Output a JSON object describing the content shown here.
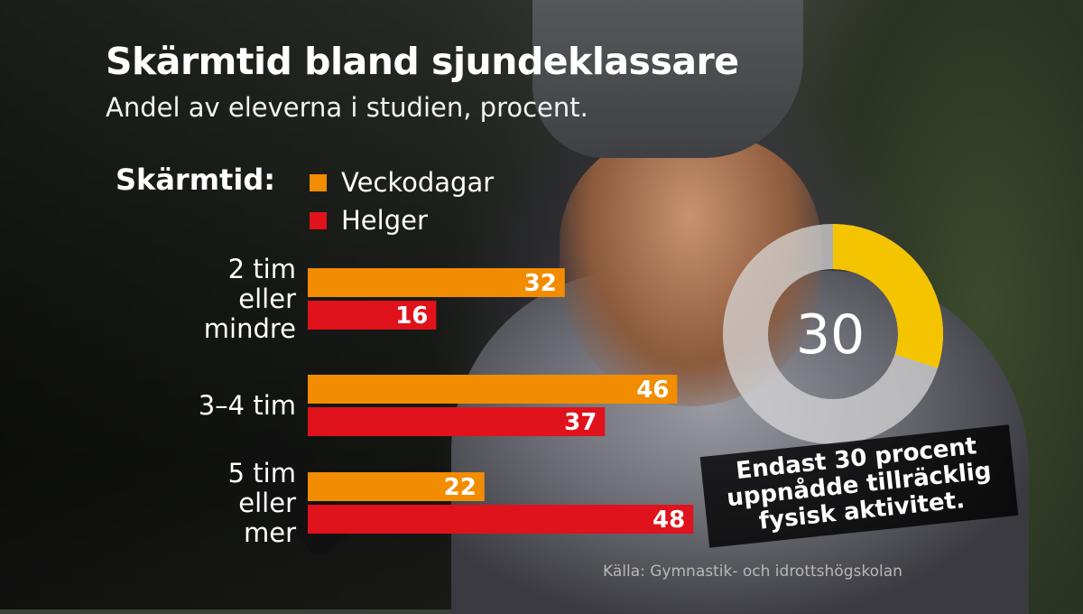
{
  "title": "Skärmtid bland sjundeklassare",
  "subtitle": "Andel av eleverna i studien, procent.",
  "legend": {
    "heading": "Skärmtid:",
    "items": [
      {
        "label": "Veckodagar",
        "color": "#f28c00"
      },
      {
        "label": "Helger",
        "color": "#e0121b"
      }
    ]
  },
  "chart_data": {
    "type": "bar",
    "orientation": "horizontal",
    "categories": [
      [
        "2 tim",
        "eller",
        "mindre"
      ],
      [
        "3–4 tim"
      ],
      [
        "5 tim",
        "eller",
        "mer"
      ]
    ],
    "series": [
      {
        "name": "Veckodagar",
        "color": "#f28c00",
        "values": [
          32,
          46,
          22
        ]
      },
      {
        "name": "Helger",
        "color": "#e0121b",
        "values": [
          16,
          37,
          48
        ]
      }
    ],
    "value_labels": true,
    "xlim": [
      0,
      50
    ],
    "grid": false,
    "legend_position": "top-left"
  },
  "donut": {
    "value": 30,
    "label": "30",
    "color_fill": "#f5c400",
    "color_rest": "rgba(215,215,215,0.75)"
  },
  "callout": "Endast 30 procent uppnådde tillräcklig fysisk aktivitet.",
  "source": "Källa: Gymnastik- och idrottshögskolan"
}
